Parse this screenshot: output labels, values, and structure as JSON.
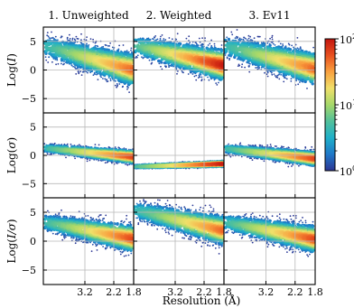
{
  "chart_data": {
    "type": "heatmap",
    "columns": [
      "1. Unweighted",
      "2. Weighted",
      "3. Ev11"
    ],
    "rows": [
      {
        "ylabel_prefix": "Log(",
        "ylabel_var": "I",
        "ylabel_suffix": ")",
        "yticks": [
          5,
          0,
          -5
        ]
      },
      {
        "ylabel_prefix": "Log(",
        "ylabel_var": "σ",
        "ylabel_suffix": ")",
        "yticks": [
          5,
          0,
          -5
        ]
      },
      {
        "ylabel_prefix": "Log(",
        "ylabel_var": "I/σ",
        "ylabel_suffix": ")",
        "yticks": [
          5,
          0,
          -5
        ]
      }
    ],
    "xlabel": "Resolution (Å)",
    "xticks": [
      "3.2",
      "2.2",
      "1.8"
    ],
    "ylim": [
      -7.5,
      7.5
    ],
    "grid": true,
    "colorbar": {
      "scale": "log",
      "ticks": [
        {
          "base": "10",
          "exp": "2",
          "value": 100
        },
        {
          "base": "10",
          "exp": "1",
          "value": 10
        },
        {
          "base": "10",
          "exp": "0",
          "value": 1
        }
      ],
      "colormap": [
        "#2c3593",
        "#1f78c8",
        "#1fb0c9",
        "#52c09b",
        "#a6d86a",
        "#f0e06a",
        "#f9a13f",
        "#e8501f",
        "#c3160f"
      ]
    },
    "panels": [
      [
        {
          "trend": {
            "start": 4.2,
            "end": 0.0
          },
          "spread": 3.0,
          "peak_intensity": 0.85
        },
        {
          "trend": {
            "start": 4.3,
            "end": 0.8
          },
          "spread": 2.8,
          "peak_intensity": 1.0
        },
        {
          "trend": {
            "start": 4.2,
            "end": 0.2
          },
          "spread": 3.0,
          "peak_intensity": 0.85
        }
      ],
      [
        {
          "trend": {
            "start": 1.3,
            "end": -0.3
          },
          "spread": 1.2,
          "peak_intensity": 0.9
        },
        {
          "trend": {
            "start": -2.0,
            "end": -1.5
          },
          "spread": 0.5,
          "peak_intensity": 1.0
        },
        {
          "trend": {
            "start": 1.2,
            "end": -0.6
          },
          "spread": 1.3,
          "peak_intensity": 0.9
        }
      ],
      [
        {
          "trend": {
            "start": 3.3,
            "end": 0.4
          },
          "spread": 2.4,
          "peak_intensity": 0.9
        },
        {
          "trend": {
            "start": 5.4,
            "end": 1.8
          },
          "spread": 2.6,
          "peak_intensity": 0.85
        },
        {
          "trend": {
            "start": 3.3,
            "end": 0.3
          },
          "spread": 2.4,
          "peak_intensity": 0.9
        }
      ]
    ]
  }
}
